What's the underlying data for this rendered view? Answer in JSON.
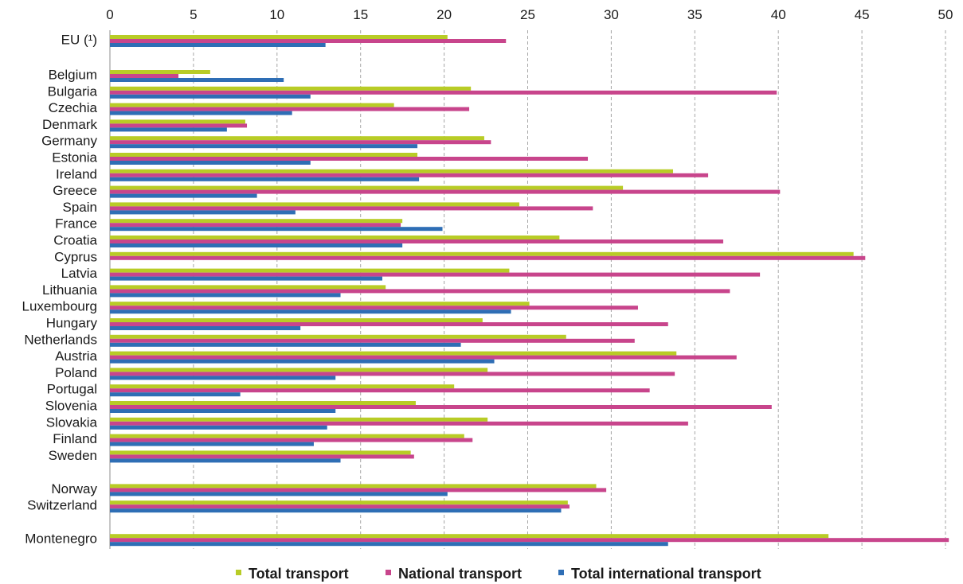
{
  "chart_data": {
    "type": "bar",
    "orientation": "horizontal",
    "categories": [
      "EU (¹)",
      "Belgium",
      "Bulgaria",
      "Czechia",
      "Denmark",
      "Germany",
      "Estonia",
      "Ireland",
      "Greece",
      "Spain",
      "France",
      "Croatia",
      "Cyprus",
      "Latvia",
      "Lithuania",
      "Luxembourg",
      "Hungary",
      "Netherlands",
      "Austria",
      "Poland",
      "Portugal",
      "Slovenia",
      "Slovakia",
      "Finland",
      "Sweden",
      "Norway",
      "Switzerland",
      "Montenegro"
    ],
    "series": [
      {
        "name": "Total transport",
        "color": "#b8cc26",
        "values": [
          20.2,
          6.0,
          21.6,
          17.0,
          8.1,
          22.4,
          18.4,
          33.7,
          30.7,
          24.5,
          17.5,
          26.9,
          44.5,
          23.9,
          16.5,
          25.1,
          22.3,
          27.3,
          33.9,
          22.6,
          20.6,
          18.3,
          22.6,
          21.2,
          18.0,
          29.1,
          27.4,
          43.0
        ]
      },
      {
        "name": "National transport",
        "color": "#c8458c",
        "values": [
          23.7,
          4.1,
          39.9,
          21.5,
          8.2,
          22.8,
          28.6,
          35.8,
          40.1,
          28.9,
          17.4,
          36.7,
          45.2,
          38.9,
          37.1,
          31.6,
          33.4,
          31.4,
          37.5,
          33.8,
          32.3,
          39.6,
          34.6,
          21.7,
          18.2,
          29.7,
          27.5,
          50.2
        ]
      },
      {
        "name": "Total international transport",
        "color": "#2e6eb5",
        "values": [
          12.9,
          10.4,
          12.0,
          10.9,
          7.0,
          18.4,
          12.0,
          18.5,
          8.8,
          11.1,
          19.9,
          17.5,
          null,
          16.3,
          13.8,
          24.0,
          11.4,
          21.0,
          23.0,
          13.5,
          7.8,
          13.5,
          13.0,
          12.2,
          13.8,
          20.2,
          27.0,
          33.4
        ]
      }
    ],
    "xlim": [
      0,
      50
    ],
    "x_ticks": [
      0,
      5,
      10,
      15,
      20,
      25,
      30,
      35,
      40,
      45,
      50
    ],
    "x_axis_position": "top",
    "grid": "vertical dashed",
    "legend_position": "bottom",
    "title": "",
    "xlabel": "",
    "ylabel": ""
  }
}
